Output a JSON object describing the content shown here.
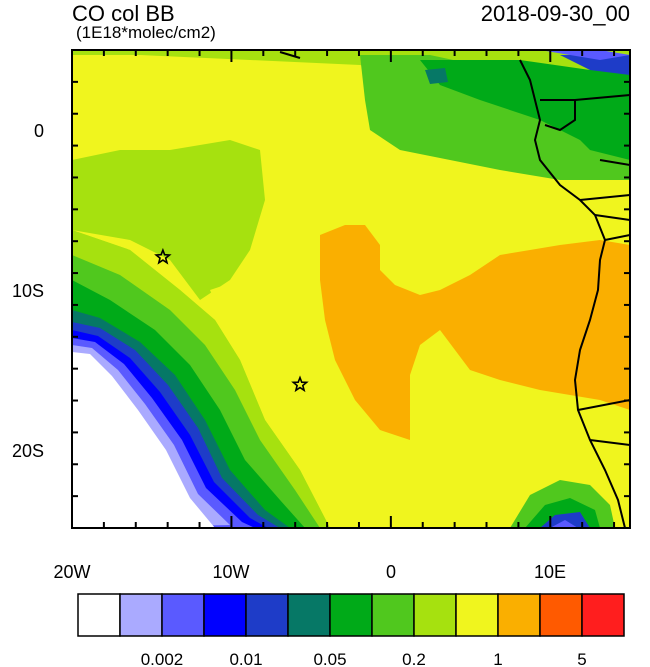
{
  "title": {
    "variable": "CO col BB",
    "units": "(1E18*molec/cm2)",
    "datetime": "2018-09-30_00"
  },
  "axes": {
    "lon_ticks": [
      {
        "label": "20W",
        "value": -20
      },
      {
        "label": "10W",
        "value": -10
      },
      {
        "label": "0",
        "value": 0
      },
      {
        "label": "10E",
        "value": 10
      }
    ],
    "lat_ticks": [
      {
        "label": "0",
        "value": 0
      },
      {
        "label": "10S",
        "value": -10
      },
      {
        "label": "20S",
        "value": -20
      }
    ],
    "lon_range": [
      -20,
      15
    ],
    "lat_range": [
      -25,
      5
    ]
  },
  "markers": [
    {
      "name": "star-marker",
      "lon": -14.3,
      "lat": -8.0
    },
    {
      "name": "star-marker",
      "lon": -5.7,
      "lat": -16.0
    }
  ],
  "colorbar": {
    "colors": [
      "#ffffff",
      "#aaaaff",
      "#5a5aff",
      "#0000ff",
      "#1e3cc8",
      "#067866",
      "#00aa18",
      "#50c81e",
      "#a6e10f",
      "#f0f51e",
      "#faaf00",
      "#ff5a00",
      "#ff1e1e"
    ],
    "labels": [
      "0.002",
      "0.01",
      "0.05",
      "0.2",
      "1",
      "5"
    ]
  },
  "chart_data": {
    "type": "heatmap",
    "title": "CO col BB",
    "subtitle": "(1E18*molec/cm2)",
    "datetime": "2018-09-30_00",
    "xlabel": "",
    "ylabel": "",
    "xlim": [
      -20,
      15
    ],
    "ylim": [
      -25,
      5
    ],
    "x_ticks": [
      "20W",
      "10W",
      "0",
      "10E"
    ],
    "y_ticks": [
      "0",
      "10S",
      "20S"
    ],
    "colorbar_levels": [
      "0.002",
      "0.01",
      "0.05",
      "0.2",
      "1",
      "5"
    ]
  }
}
